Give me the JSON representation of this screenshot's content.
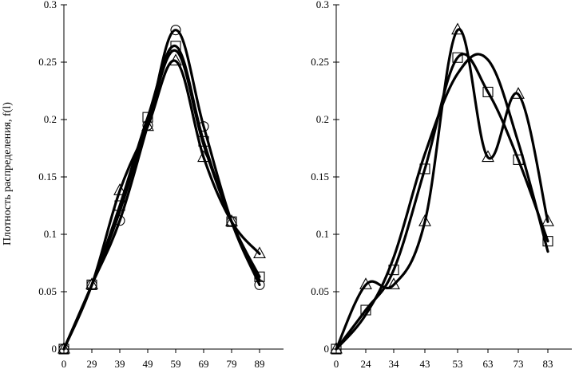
{
  "chart_data": [
    {
      "type": "line",
      "title": "",
      "xlabel": "",
      "ylabel": "Плотность распределения, f(l)",
      "categories": [
        "0",
        "29",
        "39",
        "49",
        "59",
        "69",
        "79",
        "89"
      ],
      "x": [
        0,
        29,
        39,
        49,
        59,
        69,
        79,
        89
      ],
      "ylim": [
        0,
        0.3
      ],
      "yticks": [
        "0",
        "0.05",
        "0.1",
        "0.15",
        "0.2",
        "0.25",
        "0.3"
      ],
      "grid": false,
      "series": [
        {
          "marker": "circle",
          "values": [
            0,
            0.056,
            0.112,
            0.195,
            0.278,
            0.194,
            0.111,
            0.056
          ]
        },
        {
          "marker": "square",
          "values": [
            0,
            0.056,
            0.125,
            0.202,
            0.264,
            0.181,
            0.111,
            0.063
          ]
        },
        {
          "marker": "triangle",
          "values": [
            0,
            0.056,
            0.138,
            0.194,
            0.251,
            0.167,
            0.111,
            0.083
          ]
        },
        {
          "marker": "none",
          "values": [
            0,
            0.056,
            0.12,
            0.198,
            0.26,
            0.178,
            0.111,
            0.06
          ]
        }
      ]
    },
    {
      "type": "line",
      "title": "",
      "xlabel": "",
      "ylabel": "",
      "categories": [
        "0",
        "24",
        "34",
        "43",
        "53",
        "63",
        "73",
        "83"
      ],
      "x": [
        0,
        24,
        34,
        43,
        53,
        63,
        73,
        83
      ],
      "ylim": [
        0,
        0.3
      ],
      "yticks": [
        "0",
        "0.05",
        "0.1",
        "0.15",
        "0.2",
        "0.25",
        "0.3"
      ],
      "grid": false,
      "series": [
        {
          "marker": "triangle",
          "values": [
            0,
            0.056,
            0.056,
            0.111,
            0.278,
            0.167,
            0.222,
            0.111
          ]
        },
        {
          "marker": "square",
          "values": [
            0,
            0.034,
            0.069,
            0.157,
            0.254,
            0.224,
            0.165,
            0.094
          ]
        },
        {
          "marker": "none",
          "values": [
            0,
            0.03,
            0.08,
            0.17,
            0.24,
            0.252,
            0.18,
            0.085
          ]
        }
      ]
    }
  ]
}
